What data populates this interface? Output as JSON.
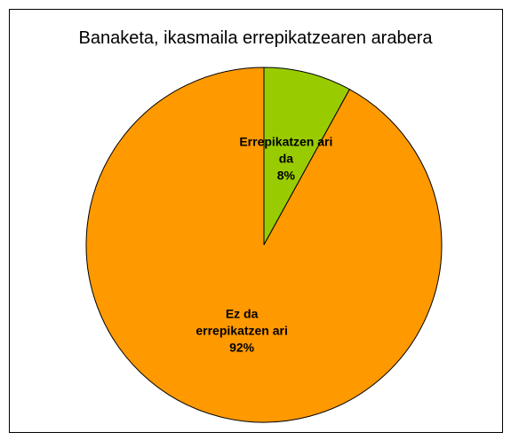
{
  "chart_data": {
    "type": "pie",
    "title": "Banaketa, ikasmaila errepikatzearen arabera",
    "categories": [
      "Errepikatzen ari da",
      "Ez da errepikatzen ari"
    ],
    "values": [
      8,
      92
    ],
    "value_labels": [
      "8%",
      "92%"
    ],
    "colors": [
      "#99cc00",
      "#ff9900"
    ]
  }
}
